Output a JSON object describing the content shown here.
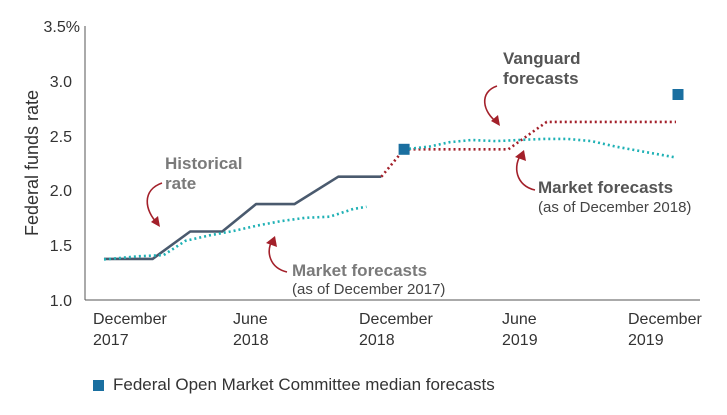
{
  "chart_data": {
    "type": "line",
    "ylabel": "Federal funds rate",
    "ylim": [
      1.0,
      3.5
    ],
    "y_ticks": [
      "3.5%",
      "3.0",
      "2.5",
      "2.0",
      "1.5",
      "1.0"
    ],
    "x_ticks": [
      {
        "line1": "December",
        "line2": "2017"
      },
      {
        "line1": "June",
        "line2": "2018"
      },
      {
        "line1": "December",
        "line2": "2018"
      },
      {
        "line1": "June",
        "line2": "2019"
      },
      {
        "line1": "December",
        "line2": "2019"
      }
    ],
    "grid": false,
    "series": [
      {
        "name": "Historical rate",
        "color": "#4a5a6e",
        "style": "solid",
        "points": [
          [
            "2017-12-01",
            1.375
          ],
          [
            "2018-02-01",
            1.375
          ],
          [
            "2018-03-21",
            1.625
          ],
          [
            "2018-05-01",
            1.625
          ],
          [
            "2018-06-13",
            1.875
          ],
          [
            "2018-08-01",
            1.875
          ],
          [
            "2018-09-26",
            2.125
          ],
          [
            "2018-11-20",
            2.125
          ]
        ]
      },
      {
        "name": "Vanguard forecasts",
        "color": "#a3202a",
        "style": "dotted",
        "points": [
          [
            "2018-11-20",
            2.125
          ],
          [
            "2018-12-19",
            2.375
          ],
          [
            "2019-05-01",
            2.375
          ],
          [
            "2019-06-19",
            2.625
          ],
          [
            "2019-12-01",
            2.625
          ]
        ]
      },
      {
        "name": "Market forecasts (as of December 2017)",
        "color": "#1fb1b5",
        "style": "dotted",
        "points": [
          [
            "2017-12-01",
            1.37
          ],
          [
            "2018-01-15",
            1.4
          ],
          [
            "2018-02-15",
            1.41
          ],
          [
            "2018-03-15",
            1.54
          ],
          [
            "2018-04-15",
            1.59
          ],
          [
            "2018-05-15",
            1.63
          ],
          [
            "2018-06-15",
            1.68
          ],
          [
            "2018-07-15",
            1.72
          ],
          [
            "2018-08-15",
            1.75
          ],
          [
            "2018-09-15",
            1.76
          ],
          [
            "2018-10-15",
            1.83
          ],
          [
            "2018-11-01",
            1.85
          ]
        ]
      },
      {
        "name": "Market forecasts (as of December 2018)",
        "color": "#1fb1b5",
        "style": "dotted",
        "points": [
          [
            "2018-12-19",
            2.375
          ],
          [
            "2019-01-20",
            2.4
          ],
          [
            "2019-02-15",
            2.44
          ],
          [
            "2019-03-15",
            2.46
          ],
          [
            "2019-04-15",
            2.45
          ],
          [
            "2019-05-15",
            2.46
          ],
          [
            "2019-06-15",
            2.47
          ],
          [
            "2019-07-15",
            2.47
          ],
          [
            "2019-08-15",
            2.45
          ],
          [
            "2019-09-15",
            2.4
          ],
          [
            "2019-10-15",
            2.36
          ],
          [
            "2019-12-01",
            2.3
          ]
        ]
      }
    ],
    "fomc_markers": {
      "label": "Federal Open Market Committee median forecasts",
      "color": "#1a6fa0",
      "points": [
        [
          "2018-12-19",
          2.375
        ],
        [
          "2019-12-19",
          2.875
        ]
      ]
    },
    "annotations": {
      "historical": {
        "line1": "Historical",
        "line2": "rate",
        "color": "#7a7a7a"
      },
      "vanguard": {
        "line1": "Vanguard",
        "line2": "forecasts",
        "color": "#555555"
      },
      "market_2017": {
        "title": "Market forecasts",
        "note": "(as of December 2017)",
        "color": "#7a7a7a"
      },
      "market_2018": {
        "title": "Market forecasts",
        "note": "(as of December 2018)",
        "color": "#555555"
      },
      "arrow_color": "#a3202a"
    }
  }
}
